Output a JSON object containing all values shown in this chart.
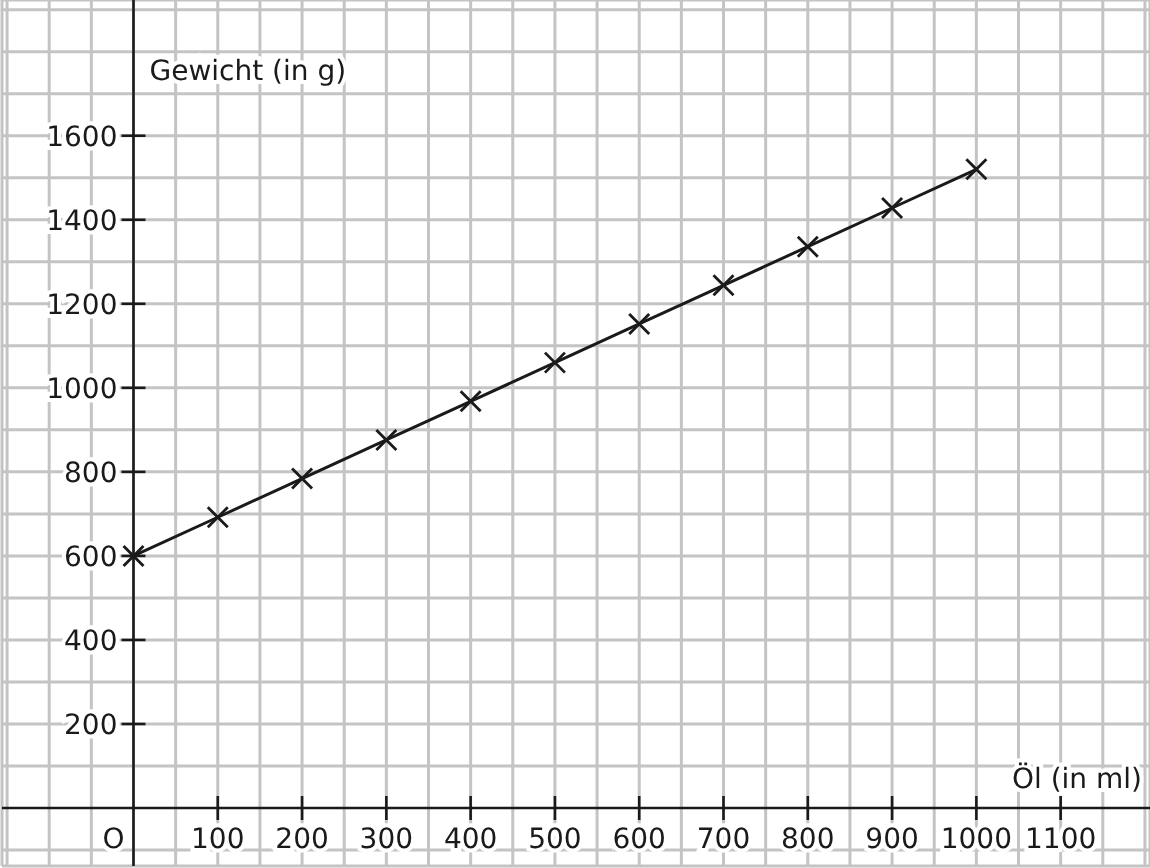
{
  "chart_data": {
    "type": "line",
    "xlabel": "Öl (in ml)",
    "ylabel": "Gewicht (in g)",
    "x": [
      0,
      100,
      200,
      300,
      400,
      500,
      600,
      700,
      800,
      900,
      1000
    ],
    "series": [
      {
        "color": "#1a1a1a",
        "values": [
          600,
          692,
          784,
          876,
          968,
          1060,
          1152,
          1244,
          1336,
          1428,
          1520
        ]
      }
    ],
    "annotations": [
      "O"
    ],
    "marker": "cross",
    "line_style": "solid",
    "grid": true,
    "xlim": [
      -156,
      1206
    ],
    "ylim": [
      -138,
      1923
    ],
    "xticks": [
      {
        "value": -150,
        "label": null
      },
      {
        "value": -100,
        "label": null
      },
      {
        "value": -50,
        "label": null
      },
      {
        "value": 0,
        "label": null
      },
      {
        "value": 50,
        "label": null
      },
      100,
      {
        "value": 150,
        "label": null
      },
      200,
      {
        "value": 250,
        "label": null
      },
      300,
      {
        "value": 350,
        "label": null
      },
      400,
      {
        "value": 450,
        "label": null
      },
      500,
      {
        "value": 550,
        "label": null
      },
      600,
      {
        "value": 650,
        "label": null
      },
      700,
      {
        "value": 750,
        "label": null
      },
      800,
      {
        "value": 850,
        "label": null
      },
      900,
      {
        "value": 950,
        "label": null
      },
      1000,
      {
        "value": 1050,
        "label": null
      },
      1100,
      {
        "value": 1150,
        "label": null
      },
      {
        "value": 1200,
        "label": null
      }
    ],
    "yticks": [
      {
        "value": -100,
        "label": null
      },
      {
        "value": 100,
        "label": null
      },
      200,
      {
        "value": 300,
        "label": null
      },
      400,
      {
        "value": 500,
        "label": null
      },
      600,
      {
        "value": 700,
        "label": null
      },
      800,
      {
        "value": 900,
        "label": null
      },
      1000,
      {
        "value": 1100,
        "label": null
      },
      1200,
      {
        "value": 1300,
        "label": null
      },
      1400,
      {
        "value": 1500,
        "label": null
      },
      1600,
      {
        "value": 1700,
        "label": null
      },
      {
        "value": 1800,
        "label": null
      },
      {
        "value": 1900,
        "label": null
      }
    ]
  }
}
